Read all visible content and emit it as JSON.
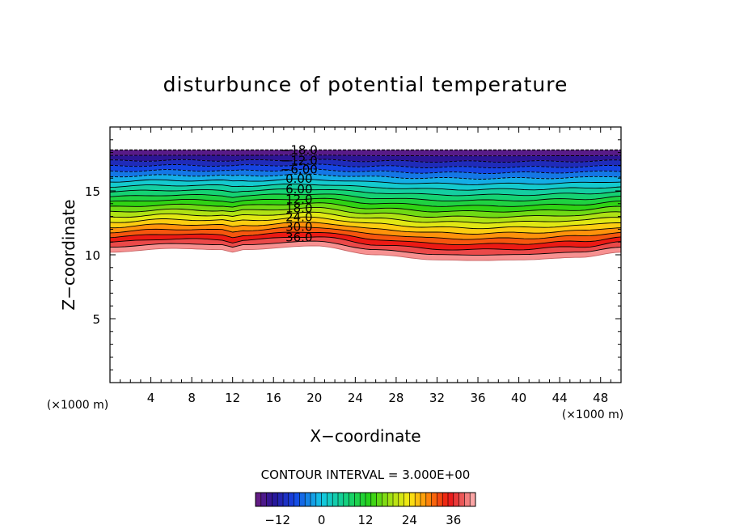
{
  "chart_data": {
    "type": "contour",
    "title": "disturbunce of potential temperature",
    "xlabel": "X−coordinate",
    "ylabel": "Z−coordinate",
    "x_unit": "(×1000 m)",
    "y_unit": "(×1000 m)",
    "xlim": [
      0,
      50
    ],
    "ylim": [
      0,
      20
    ],
    "x_ticks": [
      4,
      8,
      12,
      16,
      20,
      24,
      28,
      32,
      36,
      40,
      44,
      48
    ],
    "y_ticks": [
      5,
      10,
      15
    ],
    "contour_interval_text": "CONTOUR INTERVAL = 3.000E+00",
    "contour_interval": 3,
    "levels": [
      -18,
      -15,
      -12,
      -9,
      -6,
      -3,
      0,
      3,
      6,
      9,
      12,
      15,
      18,
      21,
      24,
      27,
      30,
      33,
      36,
      39
    ],
    "contour_labels": [
      "−18.0",
      "−12.0",
      "−6.00",
      "0.00",
      "6.00",
      "12.0",
      "18.0",
      "24.0",
      "30.0",
      "36.0"
    ],
    "field_top_km": 18.2,
    "field_bottom_km": [
      [
        0,
        10.2
      ],
      [
        6,
        10.5
      ],
      [
        11,
        10.4
      ],
      [
        12,
        10.2
      ],
      [
        13,
        10.4
      ],
      [
        20,
        10.7
      ],
      [
        26,
        10.0
      ],
      [
        32,
        9.6
      ],
      [
        36,
        9.55
      ],
      [
        40,
        9.6
      ],
      [
        46,
        9.8
      ],
      [
        50,
        10.2
      ]
    ],
    "colorbar": {
      "min": -18,
      "max": 42,
      "tick_values": [
        -12,
        0,
        12,
        24,
        36
      ],
      "tick_labels": [
        "−12",
        "0",
        "12",
        "24",
        "36"
      ]
    }
  }
}
